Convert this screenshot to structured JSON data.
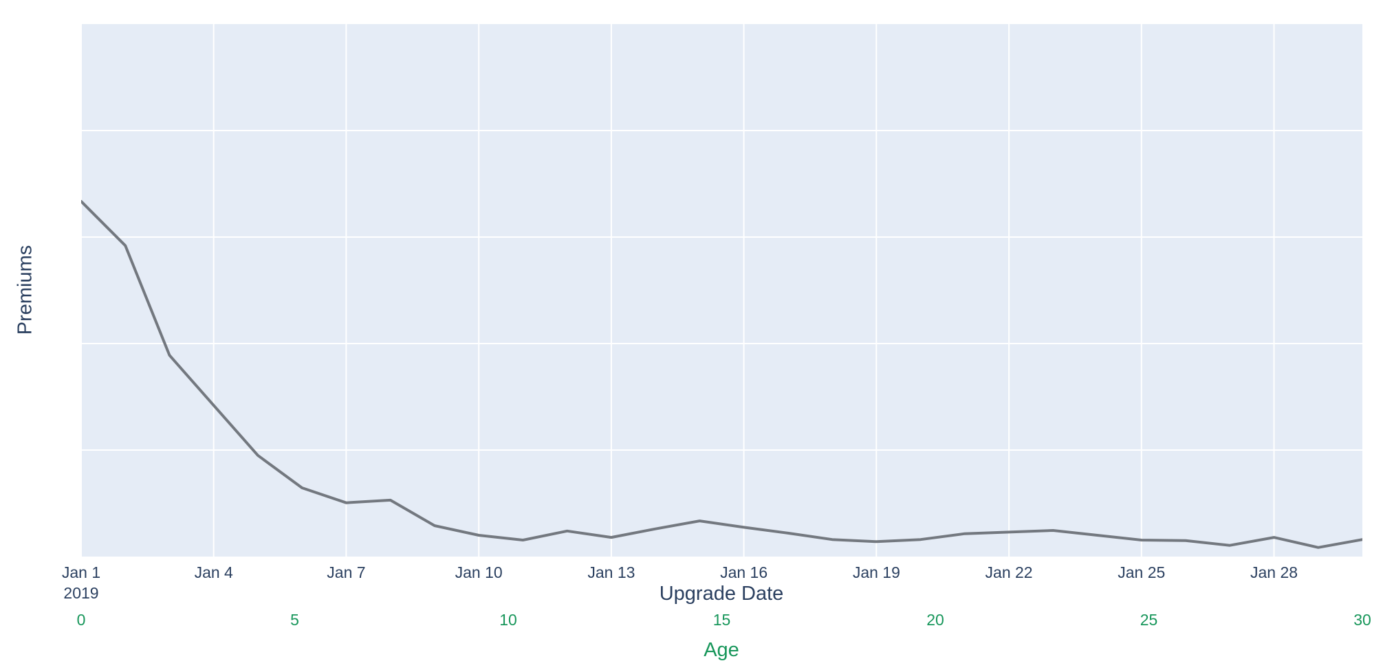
{
  "chart_data": {
    "type": "line",
    "title": "",
    "xlabel": "Upgrade Date",
    "ylabel": "Premiums",
    "secondary_xlabel": "Age",
    "x": [
      "2019-01-01",
      "2019-01-02",
      "2019-01-03",
      "2019-01-04",
      "2019-01-05",
      "2019-01-06",
      "2019-01-07",
      "2019-01-08",
      "2019-01-09",
      "2019-01-10",
      "2019-01-11",
      "2019-01-12",
      "2019-01-13",
      "2019-01-14",
      "2019-01-15",
      "2019-01-16",
      "2019-01-17",
      "2019-01-18",
      "2019-01-19",
      "2019-01-20",
      "2019-01-21",
      "2019-01-22",
      "2019-01-23",
      "2019-01-24",
      "2019-01-25",
      "2019-01-26",
      "2019-01-27",
      "2019-01-28",
      "2019-01-29",
      "2019-01-30"
    ],
    "values": [
      0.667,
      0.584,
      0.378,
      0.284,
      0.19,
      0.129,
      0.101,
      0.106,
      0.058,
      0.04,
      0.031,
      0.048,
      0.036,
      0.052,
      0.067,
      0.055,
      0.044,
      0.032,
      0.028,
      0.032,
      0.043,
      0.046,
      0.049,
      0.04,
      0.031,
      0.03,
      0.021,
      0.036,
      0.017,
      0.032
    ],
    "ylim": [
      0,
      1
    ],
    "y_tick_labels_shown": false,
    "y_gridlines": [
      0.2,
      0.4,
      0.6,
      0.8
    ],
    "grid": true,
    "legend": false,
    "x_ticks": [
      {
        "label": "Jan 1",
        "year": "2019",
        "index": 0
      },
      {
        "label": "Jan 4",
        "index": 3
      },
      {
        "label": "Jan 7",
        "index": 6
      },
      {
        "label": "Jan 10",
        "index": 9
      },
      {
        "label": "Jan 13",
        "index": 12
      },
      {
        "label": "Jan 16",
        "index": 15
      },
      {
        "label": "Jan 19",
        "index": 18
      },
      {
        "label": "Jan 22",
        "index": 21
      },
      {
        "label": "Jan 25",
        "index": 24
      },
      {
        "label": "Jan 28",
        "index": 27
      }
    ],
    "age_axis": {
      "title": "Age",
      "range": [
        0,
        30
      ],
      "ticks": [
        0,
        5,
        10,
        15,
        20,
        25,
        30
      ]
    },
    "colors": {
      "plot_background": "#e5ecf6",
      "gridline": "#ffffff",
      "series_line": "#73787f",
      "axis_text": "#2a3f5f",
      "age_axis_text": "#17965a"
    }
  }
}
